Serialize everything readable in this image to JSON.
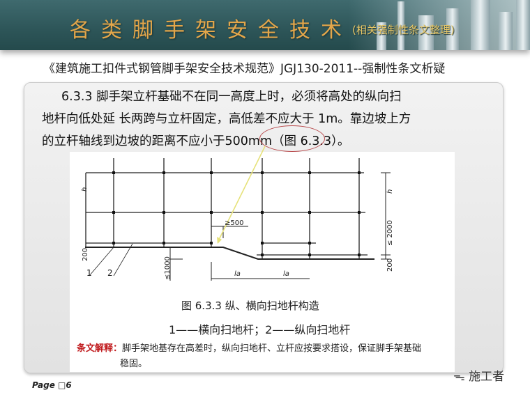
{
  "header": {
    "title": "各类脚手架安全技术",
    "title_note": "(相关强制性条文整理)"
  },
  "subtitle": "《建筑施工扣件式钢管脚手架安全技术规范》JGJ130-2011--强制性条文析疑",
  "clause": {
    "line1": "6.3.3  脚手架立杆基础不在同一高度上时，必须将高处的纵向扫",
    "line2": "地杆向低处延 长两跨与立杆固定，高低差不应大于  1m。靠边坡上方",
    "line3_a": "的立杆轴线到边坡的距离不应小于",
    "line3_highlight": "500mm",
    "line3_b": "（图 6.3.3）。"
  },
  "figure": {
    "labels": {
      "h": "h",
      "ge500": "≥500",
      "le2000": "≤ 2000",
      "d200": "200",
      "le1000": "≤1000",
      "la": "la",
      "n1": "1",
      "n2": "2"
    },
    "caption": "图  6.3.3 纵、横向扫地杆构造",
    "legend": "1——横向扫地杆；2——纵向扫地杆",
    "note_label": "条文解释：",
    "note_text": "脚手架地基存在高差时，纵向扫地杆、立杆应按要求搭设，保证脚手架基础",
    "note_text2": "稳固。"
  },
  "footer": {
    "page": "Page □6",
    "watermark": "施工者"
  },
  "colors": {
    "title": "#e3a64a",
    "header_bg": "#2d5558",
    "highlight_circle": "#b8484a",
    "arrow": "#e6e27a",
    "note_label": "#c0191c"
  }
}
